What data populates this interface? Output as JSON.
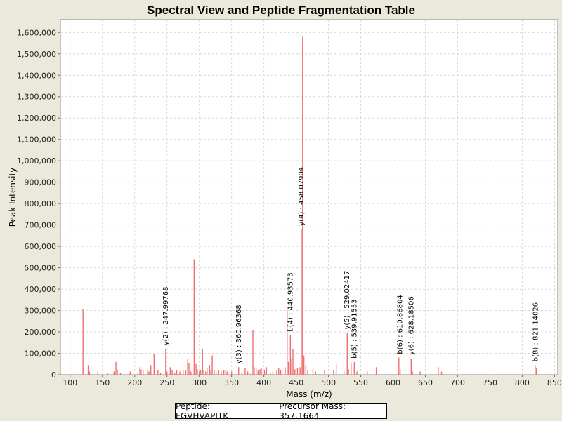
{
  "chart_data": {
    "type": "bar",
    "title": "Spectral View and Peptide Fragmentation Table",
    "xlabel": "Mass (m/z)",
    "ylabel": "Peak Intensity",
    "xlim": [
      85,
      855
    ],
    "ylim": [
      0,
      1660000
    ],
    "x_ticks": [
      100,
      150,
      200,
      250,
      300,
      350,
      400,
      450,
      500,
      550,
      600,
      650,
      700,
      750,
      800,
      850
    ],
    "y_ticks": [
      0,
      100000,
      200000,
      300000,
      400000,
      500000,
      600000,
      700000,
      800000,
      900000,
      1000000,
      1100000,
      1200000,
      1300000,
      1400000,
      1500000,
      1600000
    ],
    "y_tick_labels": [
      "0",
      "100,000",
      "200,000",
      "300,000",
      "400,000",
      "500,000",
      "600,000",
      "700,000",
      "800,000",
      "900,000",
      "1,000,000",
      "1,100,000",
      "1,200,000",
      "1,300,000",
      "1,400,000",
      "1,500,000",
      "1,600,000"
    ],
    "peak_color": "#f07070",
    "peaks": [
      [
        120,
        305000
      ],
      [
        128,
        45000
      ],
      [
        130,
        15000
      ],
      [
        143,
        15000
      ],
      [
        158,
        8000
      ],
      [
        168,
        15000
      ],
      [
        171,
        60000
      ],
      [
        173,
        25000
      ],
      [
        178,
        10000
      ],
      [
        193,
        15000
      ],
      [
        205,
        10000
      ],
      [
        208,
        35000
      ],
      [
        210,
        25000
      ],
      [
        213,
        20000
      ],
      [
        220,
        20000
      ],
      [
        222,
        15000
      ],
      [
        225,
        45000
      ],
      [
        230,
        95000
      ],
      [
        236,
        20000
      ],
      [
        240,
        10000
      ],
      [
        248,
        120000
      ],
      [
        250,
        15000
      ],
      [
        255,
        35000
      ],
      [
        258,
        20000
      ],
      [
        262,
        10000
      ],
      [
        265,
        20000
      ],
      [
        270,
        15000
      ],
      [
        275,
        20000
      ],
      [
        279,
        20000
      ],
      [
        282,
        75000
      ],
      [
        284,
        55000
      ],
      [
        287,
        15000
      ],
      [
        292,
        540000
      ],
      [
        295,
        50000
      ],
      [
        297,
        25000
      ],
      [
        300,
        15000
      ],
      [
        302,
        20000
      ],
      [
        305,
        120000
      ],
      [
        307,
        20000
      ],
      [
        310,
        15000
      ],
      [
        312,
        30000
      ],
      [
        316,
        45000
      ],
      [
        318,
        20000
      ],
      [
        320,
        90000
      ],
      [
        323,
        20000
      ],
      [
        326,
        15000
      ],
      [
        330,
        20000
      ],
      [
        334,
        15000
      ],
      [
        338,
        20000
      ],
      [
        341,
        25000
      ],
      [
        343,
        15000
      ],
      [
        350,
        15000
      ],
      [
        361,
        35000
      ],
      [
        366,
        10000
      ],
      [
        371,
        30000
      ],
      [
        375,
        15000
      ],
      [
        380,
        10000
      ],
      [
        383,
        210000
      ],
      [
        385,
        35000
      ],
      [
        388,
        30000
      ],
      [
        391,
        20000
      ],
      [
        394,
        25000
      ],
      [
        396,
        30000
      ],
      [
        401,
        20000
      ],
      [
        404,
        35000
      ],
      [
        410,
        10000
      ],
      [
        414,
        15000
      ],
      [
        420,
        20000
      ],
      [
        423,
        30000
      ],
      [
        426,
        20000
      ],
      [
        433,
        35000
      ],
      [
        436,
        310000
      ],
      [
        438,
        60000
      ],
      [
        441,
        185000
      ],
      [
        443,
        75000
      ],
      [
        445,
        120000
      ],
      [
        448,
        25000
      ],
      [
        452,
        30000
      ],
      [
        456,
        35000
      ],
      [
        458,
        680000
      ],
      [
        460,
        1580000
      ],
      [
        462,
        90000
      ],
      [
        465,
        45000
      ],
      [
        468,
        20000
      ],
      [
        476,
        25000
      ],
      [
        480,
        15000
      ],
      [
        494,
        20000
      ],
      [
        508,
        20000
      ],
      [
        512,
        50000
      ],
      [
        524,
        15000
      ],
      [
        529,
        195000
      ],
      [
        531,
        25000
      ],
      [
        535,
        55000
      ],
      [
        540,
        60000
      ],
      [
        544,
        15000
      ],
      [
        560,
        15000
      ],
      [
        574,
        35000
      ],
      [
        609,
        80000
      ],
      [
        611,
        25000
      ],
      [
        628,
        75000
      ],
      [
        630,
        15000
      ],
      [
        642,
        15000
      ],
      [
        670,
        35000
      ],
      [
        675,
        15000
      ],
      [
        820,
        45000
      ],
      [
        822,
        30000
      ]
    ],
    "annotations": [
      {
        "x": 248.0,
        "y": 120000,
        "text": "y(2) : 247.99768"
      },
      {
        "x": 361.0,
        "y": 35000,
        "text": "y(3) : 360.96368"
      },
      {
        "x": 441.0,
        "y": 185000,
        "text": "b(4) : 440.93573"
      },
      {
        "x": 458.0,
        "y": 680000,
        "text": "y(4) : 458.07904"
      },
      {
        "x": 529.0,
        "y": 195000,
        "text": "y(5) : 529.02417"
      },
      {
        "x": 540.0,
        "y": 60000,
        "text": "b(5) : 539.91553"
      },
      {
        "x": 611.0,
        "y": 80000,
        "text": "b(6) : 610.86804"
      },
      {
        "x": 628.0,
        "y": 75000,
        "text": "y(6) : 628.18506"
      },
      {
        "x": 821.0,
        "y": 45000,
        "text": "b(8) : 821.14026"
      }
    ]
  },
  "legend": {
    "peptide": "Peptide: FGVHVAPITK",
    "precursor": "Precursor Mass: 357.1664"
  }
}
